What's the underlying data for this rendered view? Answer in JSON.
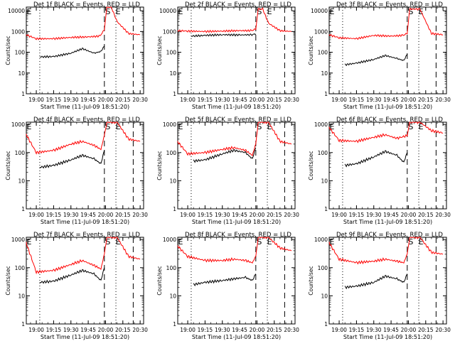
{
  "figure": {
    "common": {
      "ylabel": "Counts/sec",
      "xlabel": "Start Time (11-Jul-09 18:51:20)",
      "x_tick_labels": [
        "19:00",
        "19:15",
        "19:30",
        "19:45",
        "20:00",
        "20:15",
        "20:30"
      ],
      "y_tick_labels": [
        "1",
        "10",
        "100",
        "1000",
        "10000"
      ],
      "marker_labels": [
        "E",
        "S",
        "E"
      ],
      "colors": {
        "events": "#000000",
        "lld": "#ff0000"
      }
    }
  },
  "chart_data": [
    {
      "type": "line",
      "title": "Det 1f BLACK = Events, RED = LLD",
      "y_log": true,
      "ylim": [
        1,
        15000
      ],
      "x_unit": "time",
      "xlim": [
        "18:51:20",
        "20:33"
      ],
      "series": [
        {
          "name": "Events",
          "color": "#000000",
          "x": [
            "19:03",
            "19:15",
            "19:30",
            "19:40",
            "19:50",
            "19:56",
            "19:59"
          ],
          "values": [
            60,
            62,
            90,
            150,
            90,
            110,
            200
          ]
        },
        {
          "name": "LLD",
          "color": "#ff0000",
          "x": [
            "18:51",
            "19:00",
            "19:15",
            "19:30",
            "19:45",
            "19:55",
            "19:59",
            "20:01",
            "20:05",
            "20:10",
            "20:20",
            "20:30"
          ],
          "values": [
            700,
            450,
            450,
            520,
            550,
            600,
            1200,
            15000,
            15000,
            3000,
            800,
            700
          ]
        }
      ]
    },
    {
      "type": "line",
      "title": "Det 2f BLACK = Events, RED = LLD",
      "y_log": true,
      "ylim": [
        1,
        15000
      ],
      "x_unit": "time",
      "xlim": [
        "18:51:20",
        "20:33"
      ],
      "series": [
        {
          "name": "Events",
          "color": "#000000",
          "x": [
            "19:03",
            "19:15",
            "19:30",
            "19:45",
            "19:55",
            "19:59"
          ],
          "values": [
            600,
            650,
            700,
            680,
            700,
            750
          ]
        },
        {
          "name": "LLD",
          "color": "#ff0000",
          "x": [
            "18:51",
            "19:00",
            "19:15",
            "19:30",
            "19:45",
            "19:55",
            "19:59",
            "20:01",
            "20:05",
            "20:10",
            "20:20",
            "20:30"
          ],
          "values": [
            1100,
            1050,
            1000,
            1050,
            1100,
            1100,
            1300,
            12000,
            12000,
            2500,
            1100,
            1000
          ]
        }
      ]
    },
    {
      "type": "line",
      "title": "Det 3f BLACK = Events, RED = LLD",
      "y_log": true,
      "ylim": [
        1,
        15000
      ],
      "x_unit": "time",
      "xlim": [
        "18:51:20",
        "20:33"
      ],
      "series": [
        {
          "name": "Events",
          "color": "#000000",
          "x": [
            "19:05",
            "19:15",
            "19:30",
            "19:40",
            "19:50",
            "19:56",
            "19:59"
          ],
          "values": [
            25,
            30,
            45,
            70,
            50,
            40,
            80
          ]
        },
        {
          "name": "LLD",
          "color": "#ff0000",
          "x": [
            "18:51",
            "19:00",
            "19:15",
            "19:30",
            "19:45",
            "19:55",
            "19:59",
            "20:01",
            "20:10",
            "20:20",
            "20:30"
          ],
          "values": [
            700,
            500,
            450,
            650,
            600,
            650,
            800,
            12000,
            12000,
            800,
            700
          ]
        }
      ]
    },
    {
      "type": "line",
      "title": "Det 4f BLACK = Events, RED = LLD",
      "y_log": true,
      "ylim": [
        1,
        1200
      ],
      "x_unit": "time",
      "xlim": [
        "18:51:20",
        "20:33"
      ],
      "series": [
        {
          "name": "Events",
          "color": "#000000",
          "x": [
            "19:03",
            "19:15",
            "19:30",
            "19:40",
            "19:50",
            "19:56",
            "19:59"
          ],
          "values": [
            30,
            35,
            55,
            80,
            60,
            40,
            120
          ]
        },
        {
          "name": "LLD",
          "color": "#ff0000",
          "x": [
            "18:51",
            "19:00",
            "19:15",
            "19:30",
            "19:40",
            "19:50",
            "19:56",
            "19:59",
            "20:01",
            "20:10",
            "20:20",
            "20:30"
          ],
          "values": [
            450,
            100,
            120,
            200,
            250,
            180,
            130,
            400,
            1200,
            1200,
            300,
            250
          ]
        }
      ]
    },
    {
      "type": "line",
      "title": "Det 5f BLACK = Events, RED = LLD",
      "y_log": true,
      "ylim": [
        1,
        1200
      ],
      "x_unit": "time",
      "xlim": [
        "18:51:20",
        "20:33"
      ],
      "series": [
        {
          "name": "Events",
          "color": "#000000",
          "x": [
            "19:05",
            "19:15",
            "19:30",
            "19:40",
            "19:50",
            "19:56",
            "19:59"
          ],
          "values": [
            50,
            55,
            90,
            120,
            100,
            60,
            150
          ]
        },
        {
          "name": "LLD",
          "color": "#ff0000",
          "x": [
            "18:51",
            "19:00",
            "19:15",
            "19:30",
            "19:40",
            "19:50",
            "19:56",
            "19:59",
            "20:01",
            "20:10",
            "20:20",
            "20:30"
          ],
          "values": [
            250,
            90,
            100,
            130,
            150,
            120,
            80,
            200,
            1200,
            1200,
            250,
            200
          ]
        }
      ]
    },
    {
      "type": "line",
      "title": "Det 6f BLACK = Events, RED = LLD",
      "y_log": true,
      "ylim": [
        1,
        1200
      ],
      "x_unit": "time",
      "xlim": [
        "18:51:20",
        "20:33"
      ],
      "series": [
        {
          "name": "Events",
          "color": "#000000",
          "x": [
            "19:05",
            "19:15",
            "19:30",
            "19:40",
            "19:50",
            "19:56",
            "19:59"
          ],
          "values": [
            35,
            40,
            70,
            110,
            80,
            45,
            100
          ]
        },
        {
          "name": "LLD",
          "color": "#ff0000",
          "x": [
            "18:51",
            "19:00",
            "19:15",
            "19:30",
            "19:40",
            "19:50",
            "19:59",
            "20:01",
            "20:10",
            "20:20",
            "20:30"
          ],
          "values": [
            800,
            270,
            250,
            350,
            430,
            320,
            400,
            1200,
            1200,
            600,
            500
          ]
        }
      ]
    },
    {
      "type": "line",
      "title": "Det 7f BLACK = Events, RED = LLD",
      "y_log": true,
      "ylim": [
        1,
        1200
      ],
      "x_unit": "time",
      "xlim": [
        "18:51:20",
        "20:33"
      ],
      "series": [
        {
          "name": "Events",
          "color": "#000000",
          "x": [
            "19:03",
            "19:15",
            "19:30",
            "19:40",
            "19:50",
            "19:56",
            "19:59"
          ],
          "values": [
            30,
            33,
            55,
            80,
            60,
            35,
            100
          ]
        },
        {
          "name": "LLD",
          "color": "#ff0000",
          "x": [
            "18:51",
            "19:00",
            "19:15",
            "19:30",
            "19:40",
            "19:50",
            "19:56",
            "19:59",
            "20:01",
            "20:10",
            "20:20",
            "20:30"
          ],
          "values": [
            800,
            70,
            80,
            130,
            180,
            120,
            90,
            300,
            1200,
            1200,
            250,
            200
          ]
        }
      ]
    },
    {
      "type": "line",
      "title": "Det 8f BLACK = Events, RED = LLD",
      "y_log": true,
      "ylim": [
        1,
        1200
      ],
      "x_unit": "time",
      "xlim": [
        "18:51:20",
        "20:33"
      ],
      "series": [
        {
          "name": "Events",
          "color": "#000000",
          "x": [
            "19:05",
            "19:15",
            "19:30",
            "19:40",
            "19:50",
            "19:56",
            "19:59"
          ],
          "values": [
            25,
            30,
            35,
            40,
            45,
            35,
            60
          ]
        },
        {
          "name": "LLD",
          "color": "#ff0000",
          "x": [
            "18:51",
            "19:00",
            "19:15",
            "19:30",
            "19:40",
            "19:50",
            "19:56",
            "19:59",
            "20:01",
            "20:10",
            "20:20",
            "20:30"
          ],
          "values": [
            600,
            250,
            180,
            180,
            200,
            180,
            150,
            250,
            1200,
            1200,
            500,
            400
          ]
        }
      ]
    },
    {
      "type": "line",
      "title": "Det 9f BLACK = Events, RED = LLD",
      "y_log": true,
      "ylim": [
        1,
        1200
      ],
      "x_unit": "time",
      "xlim": [
        "18:51:20",
        "20:33"
      ],
      "series": [
        {
          "name": "Events",
          "color": "#000000",
          "x": [
            "19:05",
            "19:15",
            "19:30",
            "19:40",
            "19:50",
            "19:56",
            "19:59"
          ],
          "values": [
            20,
            22,
            30,
            50,
            40,
            30,
            60
          ]
        },
        {
          "name": "LLD",
          "color": "#ff0000",
          "x": [
            "18:51",
            "19:00",
            "19:15",
            "19:30",
            "19:40",
            "19:50",
            "19:56",
            "19:59",
            "20:01",
            "20:10",
            "20:20",
            "20:30"
          ],
          "values": [
            800,
            200,
            150,
            170,
            200,
            170,
            150,
            300,
            1200,
            1200,
            350,
            300
          ]
        }
      ]
    }
  ],
  "markers": {
    "dotted_x": [
      "19:03",
      "20:09"
    ],
    "dashed_x": [
      "19:59",
      "20:24"
    ]
  }
}
